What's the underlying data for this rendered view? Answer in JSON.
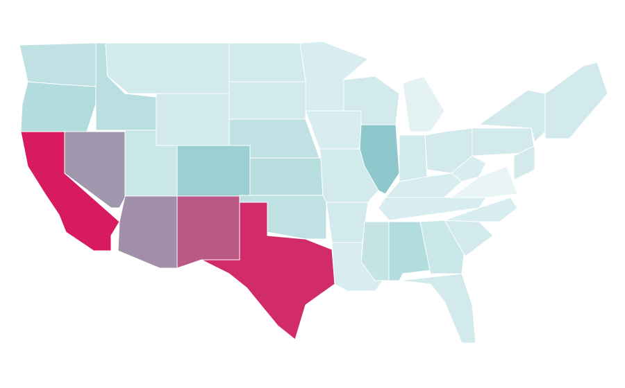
{
  "map": {
    "fills": [
      "#bfe1e3",
      "#b3dcdf",
      "#d81b60",
      "#9e97ae",
      "#b9dfe1",
      "#d2eaec",
      "#d2eaec",
      "#c9e6e8",
      "#a18ea8",
      "#9ccfd3",
      "#bb5a87",
      "#d22b69",
      "#d3eaec",
      "#d3eaec",
      "#bfe1e3",
      "#b8dee0",
      "#bfe1e3",
      "#d8edef",
      "#d8edef",
      "#d3eaec",
      "#d3eaec",
      "#8fc8cc",
      "#d8edef",
      "#d3eaec",
      "#e4f2f3",
      "#d3eaec",
      "#d3eaec",
      "#d8edef",
      "#d8edef",
      "#c6e4e6",
      "#b3dcdf",
      "#c9e6e8",
      "#d3eaec",
      "#d3eaec",
      "#d8edef",
      "#e8f4f5",
      "#d8edef",
      "#d3eaec",
      "#d3eaec"
    ]
  }
}
